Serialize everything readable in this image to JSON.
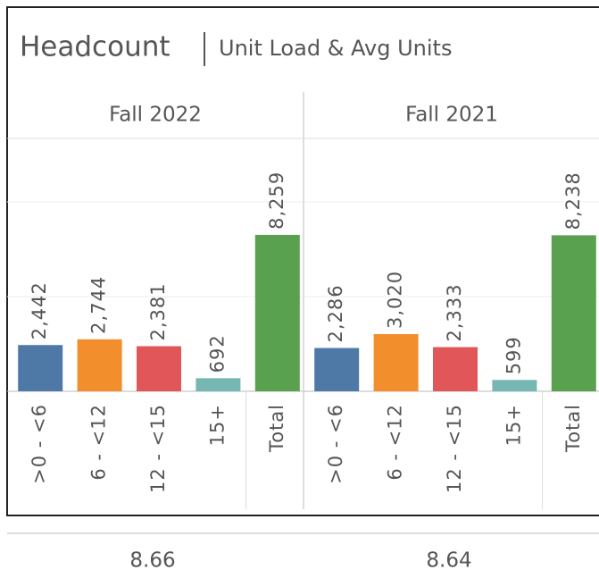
{
  "chart_data": {
    "type": "bar",
    "title": "Headcount",
    "subtitle": "Unit Load & Avg Units",
    "categories": [
      ">0 - <6",
      "6 - <12",
      "12 - <15",
      "15+",
      "Total"
    ],
    "colors": [
      "#4e79a7",
      "#f28e2b",
      "#e15759",
      "#76b7b2",
      "#59a14f"
    ],
    "series": [
      {
        "name": "Fall 2022",
        "values": [
          2442,
          2744,
          2381,
          692,
          8259
        ],
        "value_labels": [
          "2,442",
          "2,744",
          "2,381",
          "692",
          "8,259"
        ],
        "avg_units": 8.66
      },
      {
        "name": "Fall 2021",
        "values": [
          2286,
          3020,
          2333,
          599,
          8238
        ],
        "value_labels": [
          "2,286",
          "3,020",
          "2,333",
          "599",
          "8,238"
        ],
        "avg_units": 8.64
      }
    ],
    "ylim": [
      0,
      13350
    ],
    "yticks": [
      0,
      5000,
      10000
    ],
    "grid": true
  }
}
